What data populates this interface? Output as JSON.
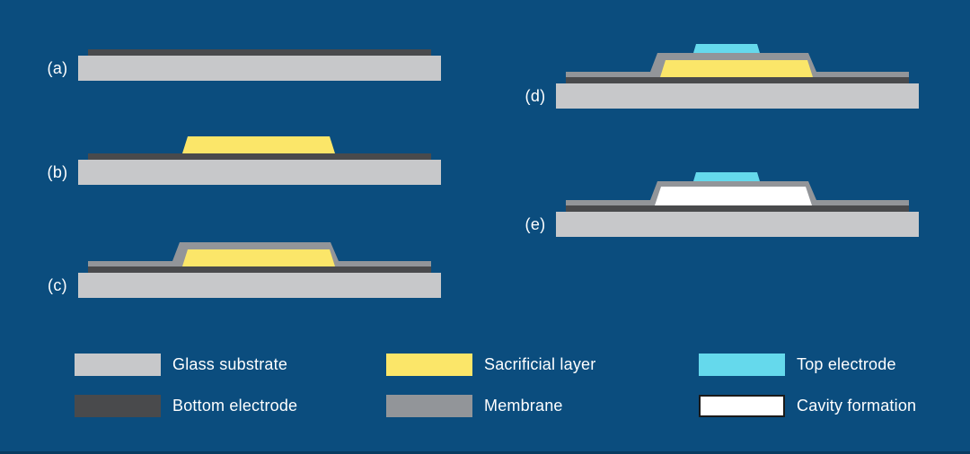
{
  "figure": {
    "background": "#0B4D7E",
    "bottom_edge_color": "#083B60",
    "text_color": "#FFFFFF"
  },
  "colors": {
    "glass_substrate": "#C7C8CA",
    "bottom_electrode": "#494A4C",
    "membrane": "#929599",
    "sacrificial_layer": "#FBE669",
    "top_electrode": "#65D9EC",
    "cavity_formation": "#FFFFFF",
    "cavity_border": "#1A1A1A"
  },
  "steps": [
    {
      "id": "a",
      "label": "(a)",
      "layers": [
        "glass_substrate",
        "bottom_electrode"
      ]
    },
    {
      "id": "b",
      "label": "(b)",
      "layers": [
        "glass_substrate",
        "bottom_electrode",
        "sacrificial_layer"
      ]
    },
    {
      "id": "c",
      "label": "(c)",
      "layers": [
        "glass_substrate",
        "bottom_electrode",
        "membrane",
        "sacrificial_layer"
      ]
    },
    {
      "id": "d",
      "label": "(d)",
      "layers": [
        "glass_substrate",
        "bottom_electrode",
        "membrane",
        "sacrificial_layer",
        "top_electrode"
      ]
    },
    {
      "id": "e",
      "label": "(e)",
      "layers": [
        "glass_substrate",
        "bottom_electrode",
        "membrane",
        "cavity_formation",
        "top_electrode"
      ]
    }
  ],
  "legend": {
    "items": [
      {
        "key": "glass_substrate",
        "label": "Glass substrate"
      },
      {
        "key": "bottom_electrode",
        "label": "Bottom electrode"
      },
      {
        "key": "sacrificial_layer",
        "label": "Sacrificial layer"
      },
      {
        "key": "membrane",
        "label": "Membrane"
      },
      {
        "key": "top_electrode",
        "label": "Top electrode"
      },
      {
        "key": "cavity_formation",
        "label": "Cavity formation"
      }
    ]
  }
}
